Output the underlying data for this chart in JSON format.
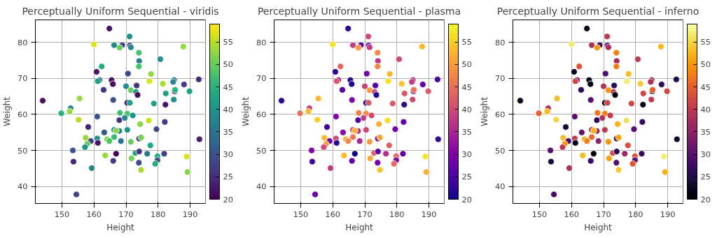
{
  "chart_data": [
    {
      "type": "scatter",
      "title": "Perceptually Uniform Sequential - viridis",
      "xlabel": "Height",
      "ylabel": "Weight",
      "marker": "circle",
      "grid": true,
      "clim": [
        20,
        59
      ],
      "cticks": [
        20,
        25,
        30,
        35,
        40,
        45,
        50,
        55
      ],
      "xlim": [
        141.7,
        194.8
      ],
      "xticks": [
        150,
        160,
        170,
        180,
        190
      ],
      "ylim": [
        35.3,
        86.2
      ],
      "yticks": [
        40,
        50,
        60,
        70,
        80
      ],
      "x": [
        164.8,
        171.1,
        160,
        166.3,
        168.8,
        171.2,
        171.5,
        168,
        187.9,
        174,
        174.1,
        174,
        180.7,
        162.4,
        160.8,
        170.6,
        177.8,
        161.7,
        161.2,
        165.5,
        165.9,
        177.3,
        181.5,
        185,
        184.7,
        188.1,
        192.7,
        163,
        170,
        173.3,
        171.5,
        173.1,
        173.6,
        182.4,
        185.2,
        185.3,
        189.8,
        144,
        155.5,
        166,
        170.4,
        171.2,
        178.7,
        182.3,
        184.9,
        152.7,
        149.8,
        152.4,
        155.2,
        161,
        168.1,
        170.4,
        172.1,
        169.6,
        167.9,
        177.1,
        174.4,
        182.1,
        158.2,
        179.5,
        163.2,
        166.3,
        167.9,
        166.9,
        170.4,
        157.4,
        161,
        159,
        161.2,
        157.9,
        157.2,
        164.1,
        164.8,
        166.3,
        168.4,
        171.5,
        174.1,
        174.7,
        177.6,
        153.4,
        153.6,
        163.5,
        166.9,
        166,
        172.9,
        174.1,
        171.7,
        174,
        174.7,
        176.6,
        179.8,
        179.8,
        179.1,
        181.9,
        188.9,
        189.2,
        192.9,
        159.3,
        154.5
      ],
      "values": [
        83.8,
        81.6,
        79.4,
        79.2,
        79.2,
        79.1,
        78.6,
        78.5,
        78.8,
        77.1,
        74.8,
        73.3,
        75.3,
        73.3,
        71.8,
        71.3,
        71.2,
        69.5,
        69.2,
        69.5,
        68.4,
        69.2,
        68.5,
        69.5,
        69.0,
        68.3,
        69.7,
        66.8,
        67.8,
        68.0,
        66.7,
        66.2,
        65.4,
        65.8,
        66.4,
        66.8,
        66.4,
        63.8,
        64.4,
        64.0,
        63.2,
        63.2,
        63.0,
        62.7,
        64.1,
        61.7,
        60.3,
        60.8,
        58.5,
        59.4,
        60.4,
        60.2,
        59.7,
        59.0,
        58.4,
        58.3,
        57.3,
        57.9,
        56.5,
        55.9,
        55.0,
        55.7,
        55.4,
        55.5,
        55.7,
        53.5,
        53.3,
        52.6,
        52.1,
        51.8,
        50.9,
        53.1,
        52.6,
        53.7,
        52.6,
        52.4,
        53.3,
        53.6,
        51.4,
        50.0,
        46.9,
        48.6,
        49.1,
        47.1,
        49.3,
        49.7,
        47.8,
        46.6,
        44.6,
        49.1,
        48.4,
        47.3,
        46.3,
        49.1,
        48.3,
        44.0,
        53.1,
        45.1,
        37.8
      ],
      "cvalues": [
        22,
        40,
        57,
        38,
        27,
        28,
        38,
        50,
        53,
        48,
        37,
        48,
        40,
        44,
        22,
        29,
        53,
        30,
        42,
        22,
        21,
        57,
        54,
        36,
        38,
        27,
        25,
        26,
        39,
        26,
        50,
        40,
        21,
        42,
        24,
        45,
        42,
        22,
        53,
        30,
        22,
        42,
        42,
        22,
        40,
        38,
        45,
        53,
        55,
        30,
        47,
        48,
        40,
        38,
        26,
        56,
        52,
        27,
        24,
        29,
        31,
        40,
        36,
        52,
        40,
        53,
        40,
        28,
        22,
        50,
        40,
        52,
        48,
        46,
        35,
        50,
        26,
        51,
        43,
        30,
        24,
        53,
        20,
        27,
        43,
        26,
        51,
        29,
        54,
        36,
        44,
        30,
        44,
        27,
        57,
        52,
        23,
        38,
        28
      ]
    },
    {
      "type": "scatter",
      "title": "Perceptually Uniform Sequential - plasma",
      "xlabel": "Height",
      "ylabel": "Weight",
      "marker": "circle",
      "grid": true,
      "clim": [
        20,
        59
      ],
      "cticks": [
        20,
        25,
        30,
        35,
        40,
        45,
        50,
        55
      ],
      "xlim": [
        141.7,
        194.8
      ],
      "xticks": [
        150,
        160,
        170,
        180,
        190
      ],
      "ylim": [
        35.3,
        86.2
      ],
      "yticks": [
        40,
        50,
        60,
        70,
        80
      ],
      "x": [
        164.8,
        171.1,
        160,
        166.3,
        168.8,
        171.2,
        171.5,
        168,
        187.9,
        174,
        174.1,
        174,
        180.7,
        162.4,
        160.8,
        170.6,
        177.8,
        161.7,
        161.2,
        165.5,
        165.9,
        177.3,
        181.5,
        185,
        184.7,
        188.1,
        192.7,
        163,
        170,
        173.3,
        171.5,
        173.1,
        173.6,
        182.4,
        185.2,
        185.3,
        189.8,
        144,
        155.5,
        166,
        170.4,
        171.2,
        178.7,
        182.3,
        184.9,
        152.7,
        149.8,
        152.4,
        155.2,
        161,
        168.1,
        170.4,
        172.1,
        169.6,
        167.9,
        177.1,
        174.4,
        182.1,
        158.2,
        179.5,
        163.2,
        166.3,
        167.9,
        166.9,
        170.4,
        157.4,
        161,
        159,
        161.2,
        157.9,
        157.2,
        164.1,
        164.8,
        166.3,
        168.4,
        171.5,
        174.1,
        174.7,
        177.6,
        153.4,
        153.6,
        163.5,
        166.9,
        166,
        172.9,
        174.1,
        171.7,
        174,
        174.7,
        176.6,
        179.8,
        179.8,
        179.1,
        181.9,
        188.9,
        189.2,
        192.9,
        159.3,
        154.5
      ],
      "values": [
        83.8,
        81.6,
        79.4,
        79.2,
        79.2,
        79.1,
        78.6,
        78.5,
        78.8,
        77.1,
        74.8,
        73.3,
        75.3,
        73.3,
        71.8,
        71.3,
        71.2,
        69.5,
        69.2,
        69.5,
        68.4,
        69.2,
        68.5,
        69.5,
        69.0,
        68.3,
        69.7,
        66.8,
        67.8,
        68.0,
        66.7,
        66.2,
        65.4,
        65.8,
        66.4,
        66.8,
        66.4,
        63.8,
        64.4,
        64.0,
        63.2,
        63.2,
        63.0,
        62.7,
        64.1,
        61.7,
        60.3,
        60.8,
        58.5,
        59.4,
        60.4,
        60.2,
        59.7,
        59.0,
        58.4,
        58.3,
        57.3,
        57.9,
        56.5,
        55.9,
        55.0,
        55.7,
        55.4,
        55.5,
        55.7,
        53.5,
        53.3,
        52.6,
        52.1,
        51.8,
        50.9,
        53.1,
        52.6,
        53.7,
        52.6,
        52.4,
        53.3,
        53.6,
        51.4,
        50.0,
        46.9,
        48.6,
        49.1,
        47.1,
        49.3,
        49.7,
        47.8,
        46.6,
        44.6,
        49.1,
        48.4,
        47.3,
        46.3,
        49.1,
        48.3,
        44.0,
        53.1,
        45.1,
        37.8
      ],
      "cvalues": [
        22,
        40,
        57,
        38,
        27,
        28,
        38,
        50,
        53,
        48,
        37,
        48,
        40,
        44,
        22,
        29,
        53,
        30,
        42,
        22,
        21,
        57,
        54,
        36,
        38,
        27,
        25,
        26,
        39,
        26,
        50,
        40,
        21,
        42,
        24,
        45,
        42,
        22,
        53,
        30,
        22,
        42,
        42,
        22,
        40,
        38,
        45,
        53,
        55,
        30,
        47,
        48,
        40,
        38,
        26,
        56,
        52,
        27,
        24,
        29,
        31,
        40,
        36,
        52,
        40,
        53,
        40,
        28,
        22,
        50,
        40,
        52,
        48,
        46,
        35,
        50,
        26,
        51,
        43,
        30,
        24,
        53,
        20,
        27,
        43,
        26,
        51,
        29,
        54,
        36,
        44,
        30,
        44,
        27,
        57,
        52,
        23,
        38,
        28
      ]
    },
    {
      "type": "scatter",
      "title": "Perceptually Uniform Sequential - inferno",
      "xlabel": "Height",
      "ylabel": "Weight",
      "marker": "circle",
      "grid": true,
      "clim": [
        20,
        59
      ],
      "cticks": [
        20,
        25,
        30,
        35,
        40,
        45,
        50,
        55
      ],
      "xlim": [
        141.7,
        194.8
      ],
      "xticks": [
        150,
        160,
        170,
        180,
        190
      ],
      "ylim": [
        35.3,
        86.2
      ],
      "yticks": [
        40,
        50,
        60,
        70,
        80
      ],
      "x": [
        164.8,
        171.1,
        160,
        166.3,
        168.8,
        171.2,
        171.5,
        168,
        187.9,
        174,
        174.1,
        174,
        180.7,
        162.4,
        160.8,
        170.6,
        177.8,
        161.7,
        161.2,
        165.5,
        165.9,
        177.3,
        181.5,
        185,
        184.7,
        188.1,
        192.7,
        163,
        170,
        173.3,
        171.5,
        173.1,
        173.6,
        182.4,
        185.2,
        185.3,
        189.8,
        144,
        155.5,
        166,
        170.4,
        171.2,
        178.7,
        182.3,
        184.9,
        152.7,
        149.8,
        152.4,
        155.2,
        161,
        168.1,
        170.4,
        172.1,
        169.6,
        167.9,
        177.1,
        174.4,
        182.1,
        158.2,
        179.5,
        163.2,
        166.3,
        167.9,
        166.9,
        170.4,
        157.4,
        161,
        159,
        161.2,
        157.9,
        157.2,
        164.1,
        164.8,
        166.3,
        168.4,
        171.5,
        174.1,
        174.7,
        177.6,
        153.4,
        153.6,
        163.5,
        166.9,
        166,
        172.9,
        174.1,
        171.7,
        174,
        174.7,
        176.6,
        179.8,
        179.8,
        179.1,
        181.9,
        188.9,
        189.2,
        192.9,
        159.3,
        154.5
      ],
      "values": [
        83.8,
        81.6,
        79.4,
        79.2,
        79.2,
        79.1,
        78.6,
        78.5,
        78.8,
        77.1,
        74.8,
        73.3,
        75.3,
        73.3,
        71.8,
        71.3,
        71.2,
        69.5,
        69.2,
        69.5,
        68.4,
        69.2,
        68.5,
        69.5,
        69.0,
        68.3,
        69.7,
        66.8,
        67.8,
        68.0,
        66.7,
        66.2,
        65.4,
        65.8,
        66.4,
        66.8,
        66.4,
        63.8,
        64.4,
        64.0,
        63.2,
        63.2,
        63.0,
        62.7,
        64.1,
        61.7,
        60.3,
        60.8,
        58.5,
        59.4,
        60.4,
        60.2,
        59.7,
        59.0,
        58.4,
        58.3,
        57.3,
        57.9,
        56.5,
        55.9,
        55.0,
        55.7,
        55.4,
        55.5,
        55.7,
        53.5,
        53.3,
        52.6,
        52.1,
        51.8,
        50.9,
        53.1,
        52.6,
        53.7,
        52.6,
        52.4,
        53.3,
        53.6,
        51.4,
        50.0,
        46.9,
        48.6,
        49.1,
        47.1,
        49.3,
        49.7,
        47.8,
        46.6,
        44.6,
        49.1,
        48.4,
        47.3,
        46.3,
        49.1,
        48.3,
        44.0,
        53.1,
        45.1,
        37.8
      ],
      "cvalues": [
        22,
        40,
        57,
        38,
        27,
        28,
        38,
        50,
        53,
        48,
        37,
        48,
        40,
        44,
        22,
        29,
        53,
        30,
        42,
        22,
        21,
        57,
        54,
        36,
        38,
        27,
        25,
        26,
        39,
        26,
        50,
        40,
        21,
        42,
        24,
        45,
        42,
        22,
        53,
        30,
        22,
        42,
        42,
        22,
        40,
        38,
        45,
        53,
        55,
        30,
        47,
        48,
        40,
        38,
        26,
        56,
        52,
        27,
        24,
        29,
        31,
        40,
        36,
        52,
        40,
        53,
        40,
        28,
        22,
        50,
        40,
        52,
        48,
        46,
        35,
        50,
        26,
        51,
        43,
        30,
        24,
        53,
        20,
        27,
        43,
        26,
        51,
        29,
        54,
        36,
        44,
        30,
        44,
        27,
        57,
        52,
        23,
        38,
        28
      ]
    }
  ]
}
